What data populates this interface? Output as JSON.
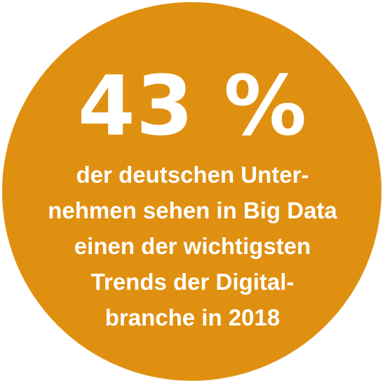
{
  "infographic": {
    "background_color": "#E09010",
    "text_color": "#FFFFFF",
    "stat": "43 %",
    "caption_lines": [
      "der deutschen Unter-",
      "nehmen sehen in Big Data",
      "einen der wichtigsten",
      "Trends der Digital-",
      "branche in 2018"
    ]
  }
}
